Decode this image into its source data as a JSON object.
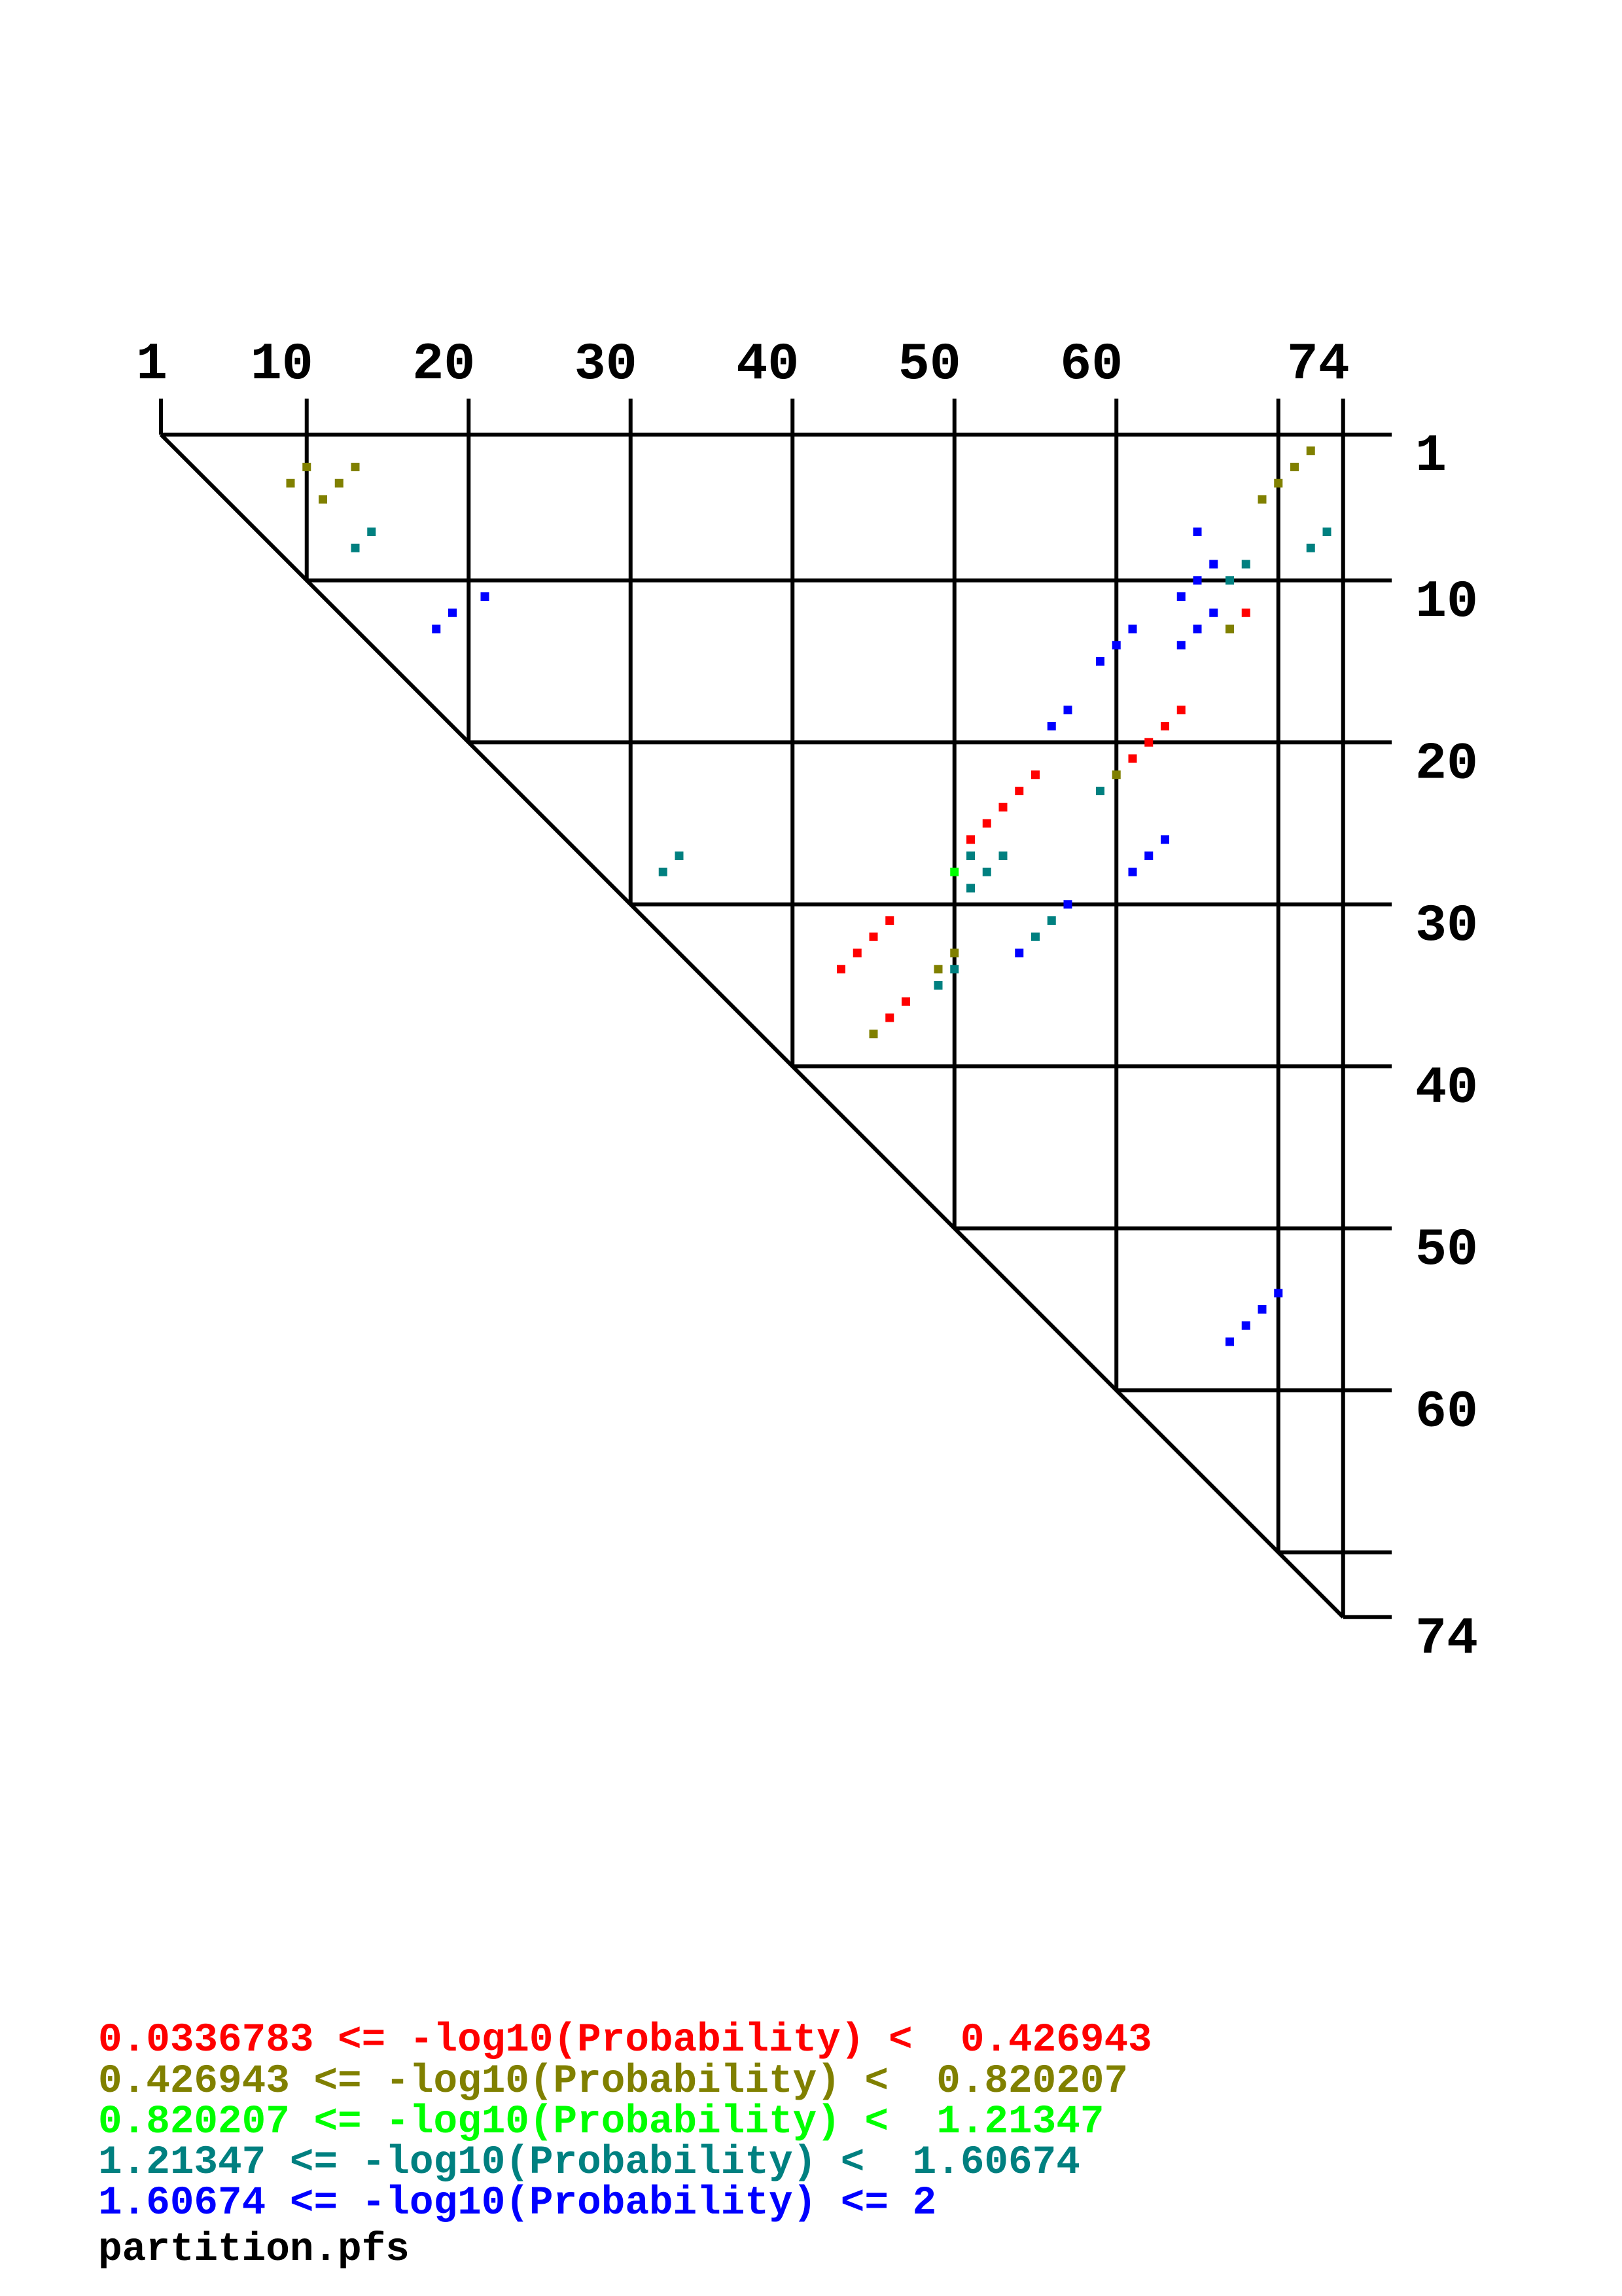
{
  "chart_data": {
    "type": "heatmap",
    "description_kind": "triangular base-pair probability dot plot",
    "sequence_length": 74,
    "x_tick_labels": [
      "1",
      "10",
      "20",
      "30",
      "40",
      "50",
      "60",
      "74"
    ],
    "x_tick_values": [
      1,
      10,
      20,
      30,
      40,
      50,
      60,
      74
    ],
    "y_tick_labels": [
      "1",
      "10",
      "20",
      "30",
      "40",
      "50",
      "60",
      "74"
    ],
    "y_tick_values": [
      1,
      10,
      20,
      30,
      40,
      50,
      60,
      74
    ],
    "grid_lines": [
      1,
      10,
      20,
      30,
      40,
      50,
      60,
      70,
      74
    ],
    "xlim": [
      1,
      74
    ],
    "ylim": [
      1,
      74
    ],
    "grid": true,
    "legend_placement": "bottom-left",
    "legend": [
      {
        "text": "0.0336783 <= -log10(Probability) <  0.426943",
        "color": "#ff0000"
      },
      {
        "text": "0.426943 <= -log10(Probability) <  0.820207",
        "color": "#808000"
      },
      {
        "text": "0.820207 <= -log10(Probability) <  1.21347",
        "color": "#00ff00"
      },
      {
        "text": "1.21347 <= -log10(Probability) <  1.60674",
        "color": "#008080"
      },
      {
        "text": "1.60674 <= -log10(Probability) <= 2",
        "color": "#0000ff"
      }
    ],
    "filename": "partition.pfs",
    "series": [
      {
        "bin": "0.0336783-0.426943",
        "color": "#ff0000",
        "points": [
          [
            12,
            68
          ],
          [
            18,
            64
          ],
          [
            19,
            63
          ],
          [
            20,
            62
          ],
          [
            21,
            61
          ],
          [
            22,
            55
          ],
          [
            23,
            54
          ],
          [
            24,
            53
          ],
          [
            25,
            52
          ],
          [
            26,
            51
          ],
          [
            31,
            46
          ],
          [
            32,
            45
          ],
          [
            33,
            44
          ],
          [
            34,
            43
          ],
          [
            36,
            47
          ],
          [
            37,
            46
          ]
        ]
      },
      {
        "bin": "0.426943-0.820207",
        "color": "#808000",
        "points": [
          [
            3,
            10
          ],
          [
            3,
            13
          ],
          [
            4,
            9
          ],
          [
            4,
            12
          ],
          [
            5,
            11
          ],
          [
            2,
            72
          ],
          [
            3,
            71
          ],
          [
            4,
            70
          ],
          [
            5,
            69
          ],
          [
            13,
            67
          ],
          [
            22,
            60
          ],
          [
            33,
            50
          ],
          [
            34,
            49
          ],
          [
            38,
            45
          ]
        ]
      },
      {
        "bin": "0.820207-1.21347",
        "color": "#00ff00",
        "points": [
          [
            28,
            50
          ]
        ]
      },
      {
        "bin": "1.21347-1.60674",
        "color": "#008080",
        "points": [
          [
            7,
            14
          ],
          [
            8,
            13
          ],
          [
            7,
            73
          ],
          [
            8,
            72
          ],
          [
            9,
            68
          ],
          [
            10,
            67
          ],
          [
            23,
            59
          ],
          [
            27,
            51
          ],
          [
            27,
            53
          ],
          [
            28,
            52
          ],
          [
            29,
            51
          ],
          [
            31,
            56
          ],
          [
            32,
            55
          ],
          [
            34,
            50
          ],
          [
            35,
            49
          ],
          [
            27,
            33
          ],
          [
            28,
            32
          ]
        ]
      },
      {
        "bin": "1.60674-2",
        "color": "#0000ff",
        "points": [
          [
            11,
            21
          ],
          [
            12,
            19
          ],
          [
            13,
            18
          ],
          [
            7,
            65
          ],
          [
            9,
            66
          ],
          [
            10,
            65
          ],
          [
            11,
            64
          ],
          [
            12,
            66
          ],
          [
            13,
            65
          ],
          [
            14,
            64
          ],
          [
            13,
            61
          ],
          [
            14,
            60
          ],
          [
            15,
            59
          ],
          [
            18,
            57
          ],
          [
            19,
            56
          ],
          [
            26,
            63
          ],
          [
            27,
            62
          ],
          [
            28,
            61
          ],
          [
            30,
            57
          ],
          [
            33,
            54
          ],
          [
            54,
            70
          ],
          [
            55,
            69
          ],
          [
            56,
            68
          ],
          [
            57,
            67
          ]
        ]
      }
    ]
  }
}
